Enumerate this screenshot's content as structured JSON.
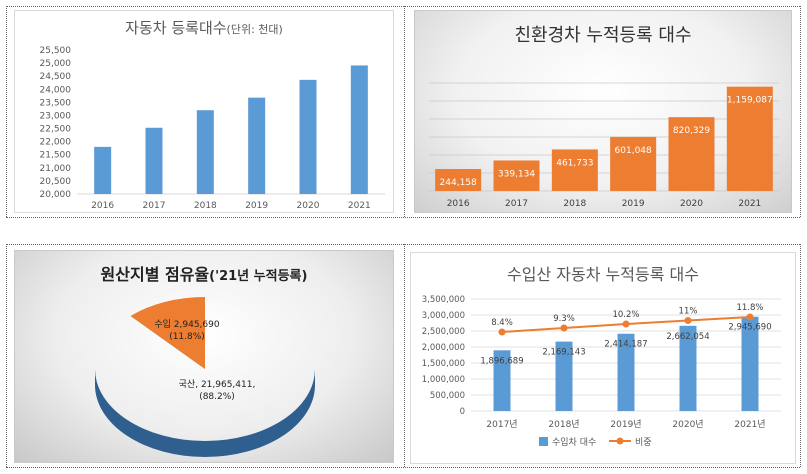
{
  "colors": {
    "blue": "#5b9bd5",
    "orange": "#ed7d31",
    "axis_text": "#595959",
    "grid": "#d9d9d9"
  },
  "chart_data": [
    {
      "type": "bar",
      "title": "자동차 등록대수",
      "title_unit": "(단위: 천대)",
      "categories": [
        "2016",
        "2017",
        "2018",
        "2019",
        "2020",
        "2021"
      ],
      "values": [
        21800,
        22530,
        23200,
        23680,
        24360,
        24910
      ],
      "ylim": [
        20000,
        25500
      ],
      "yticks": [
        "20,000",
        "20,500",
        "21,000",
        "21,500",
        "22,000",
        "22,500",
        "23,000",
        "23,500",
        "24,000",
        "24,500",
        "25,000",
        "25,500"
      ],
      "grid": false,
      "color": "#5b9bd5"
    },
    {
      "type": "bar",
      "title": "친환경차 누적등록 대수",
      "categories": [
        "2016",
        "2017",
        "2018",
        "2019",
        "2020",
        "2021"
      ],
      "values": [
        244158,
        339134,
        461733,
        601048,
        820329,
        1159087
      ],
      "data_labels": [
        "244,158",
        "339,134",
        "461,733",
        "601,048",
        "820,329",
        "1,159,087"
      ],
      "ylim": [
        0,
        1200000
      ],
      "grid": true,
      "color": "#ed7d31"
    },
    {
      "type": "pie",
      "title": "원산지별 점유율",
      "title_suffix": "('21년 누적등록)",
      "slices": [
        {
          "name": "국산",
          "value": 21965411,
          "percent": 88.2,
          "label_line1": "국산, 21,965,411,",
          "label_line2": "(88.2%)",
          "color": "#5b9bd5"
        },
        {
          "name": "수입",
          "value": 2945690,
          "percent": 11.8,
          "label_line1": "수입 2,945,690",
          "label_line2": "(11.8%)",
          "color": "#ed7d31"
        }
      ]
    },
    {
      "type": "bar",
      "title": "수입산 자동차 누적등록 대수",
      "categories": [
        "2017년",
        "2018년",
        "2019년",
        "2020년",
        "2021년"
      ],
      "series": [
        {
          "name": "수입차 대수",
          "type": "bar",
          "values": [
            1896689,
            2169143,
            2414187,
            2662054,
            2945690
          ],
          "data_labels": [
            "1,896,689",
            "2,169,143",
            "2,414,187",
            "2,662,054",
            "2,945,690"
          ],
          "color": "#5b9bd5"
        },
        {
          "name": "비중",
          "type": "line",
          "values": [
            8.4,
            9.3,
            10.2,
            11.0,
            11.8
          ],
          "data_labels": [
            "8.4%",
            "9.3%",
            "10.2%",
            "11%",
            "11.8%"
          ],
          "color": "#ed7d31"
        }
      ],
      "ylim": [
        0,
        3500000
      ],
      "yticks": [
        "0",
        "500,000",
        "1,000,000",
        "1,500,000",
        "2,000,000",
        "2,500,000",
        "3,000,000",
        "3,500,000"
      ],
      "grid": true,
      "legend": "bottom"
    }
  ]
}
